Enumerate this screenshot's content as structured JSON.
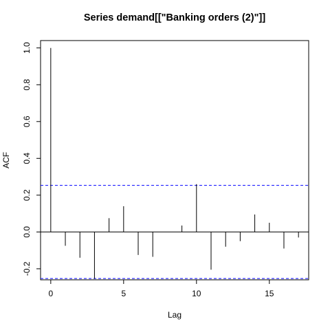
{
  "chart_data": {
    "type": "bar",
    "title": "Series  demand[[\"Banking orders (2)\"]]",
    "xlabel": "Lag",
    "ylabel": "ACF",
    "x": [
      0,
      1,
      2,
      3,
      4,
      5,
      6,
      7,
      8,
      9,
      10,
      11,
      12,
      13,
      14,
      15,
      16,
      17
    ],
    "values": [
      1.0,
      -0.075,
      -0.14,
      -0.255,
      0.075,
      0.14,
      -0.125,
      -0.135,
      0.0,
      0.035,
      0.26,
      -0.205,
      -0.08,
      -0.05,
      0.095,
      0.05,
      -0.09,
      -0.03
    ],
    "confidence_bound": 0.253,
    "xlim": [
      -0.7,
      17.7
    ],
    "ylim": [
      -0.26,
      1.04
    ],
    "x_ticks": [
      0,
      5,
      10,
      15
    ],
    "y_ticks": [
      -0.2,
      0.0,
      0.2,
      0.4,
      0.6,
      0.8,
      1.0
    ],
    "x_tick_labels": [
      "0",
      "5",
      "10",
      "15"
    ],
    "y_tick_labels": [
      "-0.2",
      "0.0",
      "0.2",
      "0.4",
      "0.6",
      "0.8",
      "1.0"
    ],
    "confidence_color": "#0000ff",
    "grid": false
  }
}
